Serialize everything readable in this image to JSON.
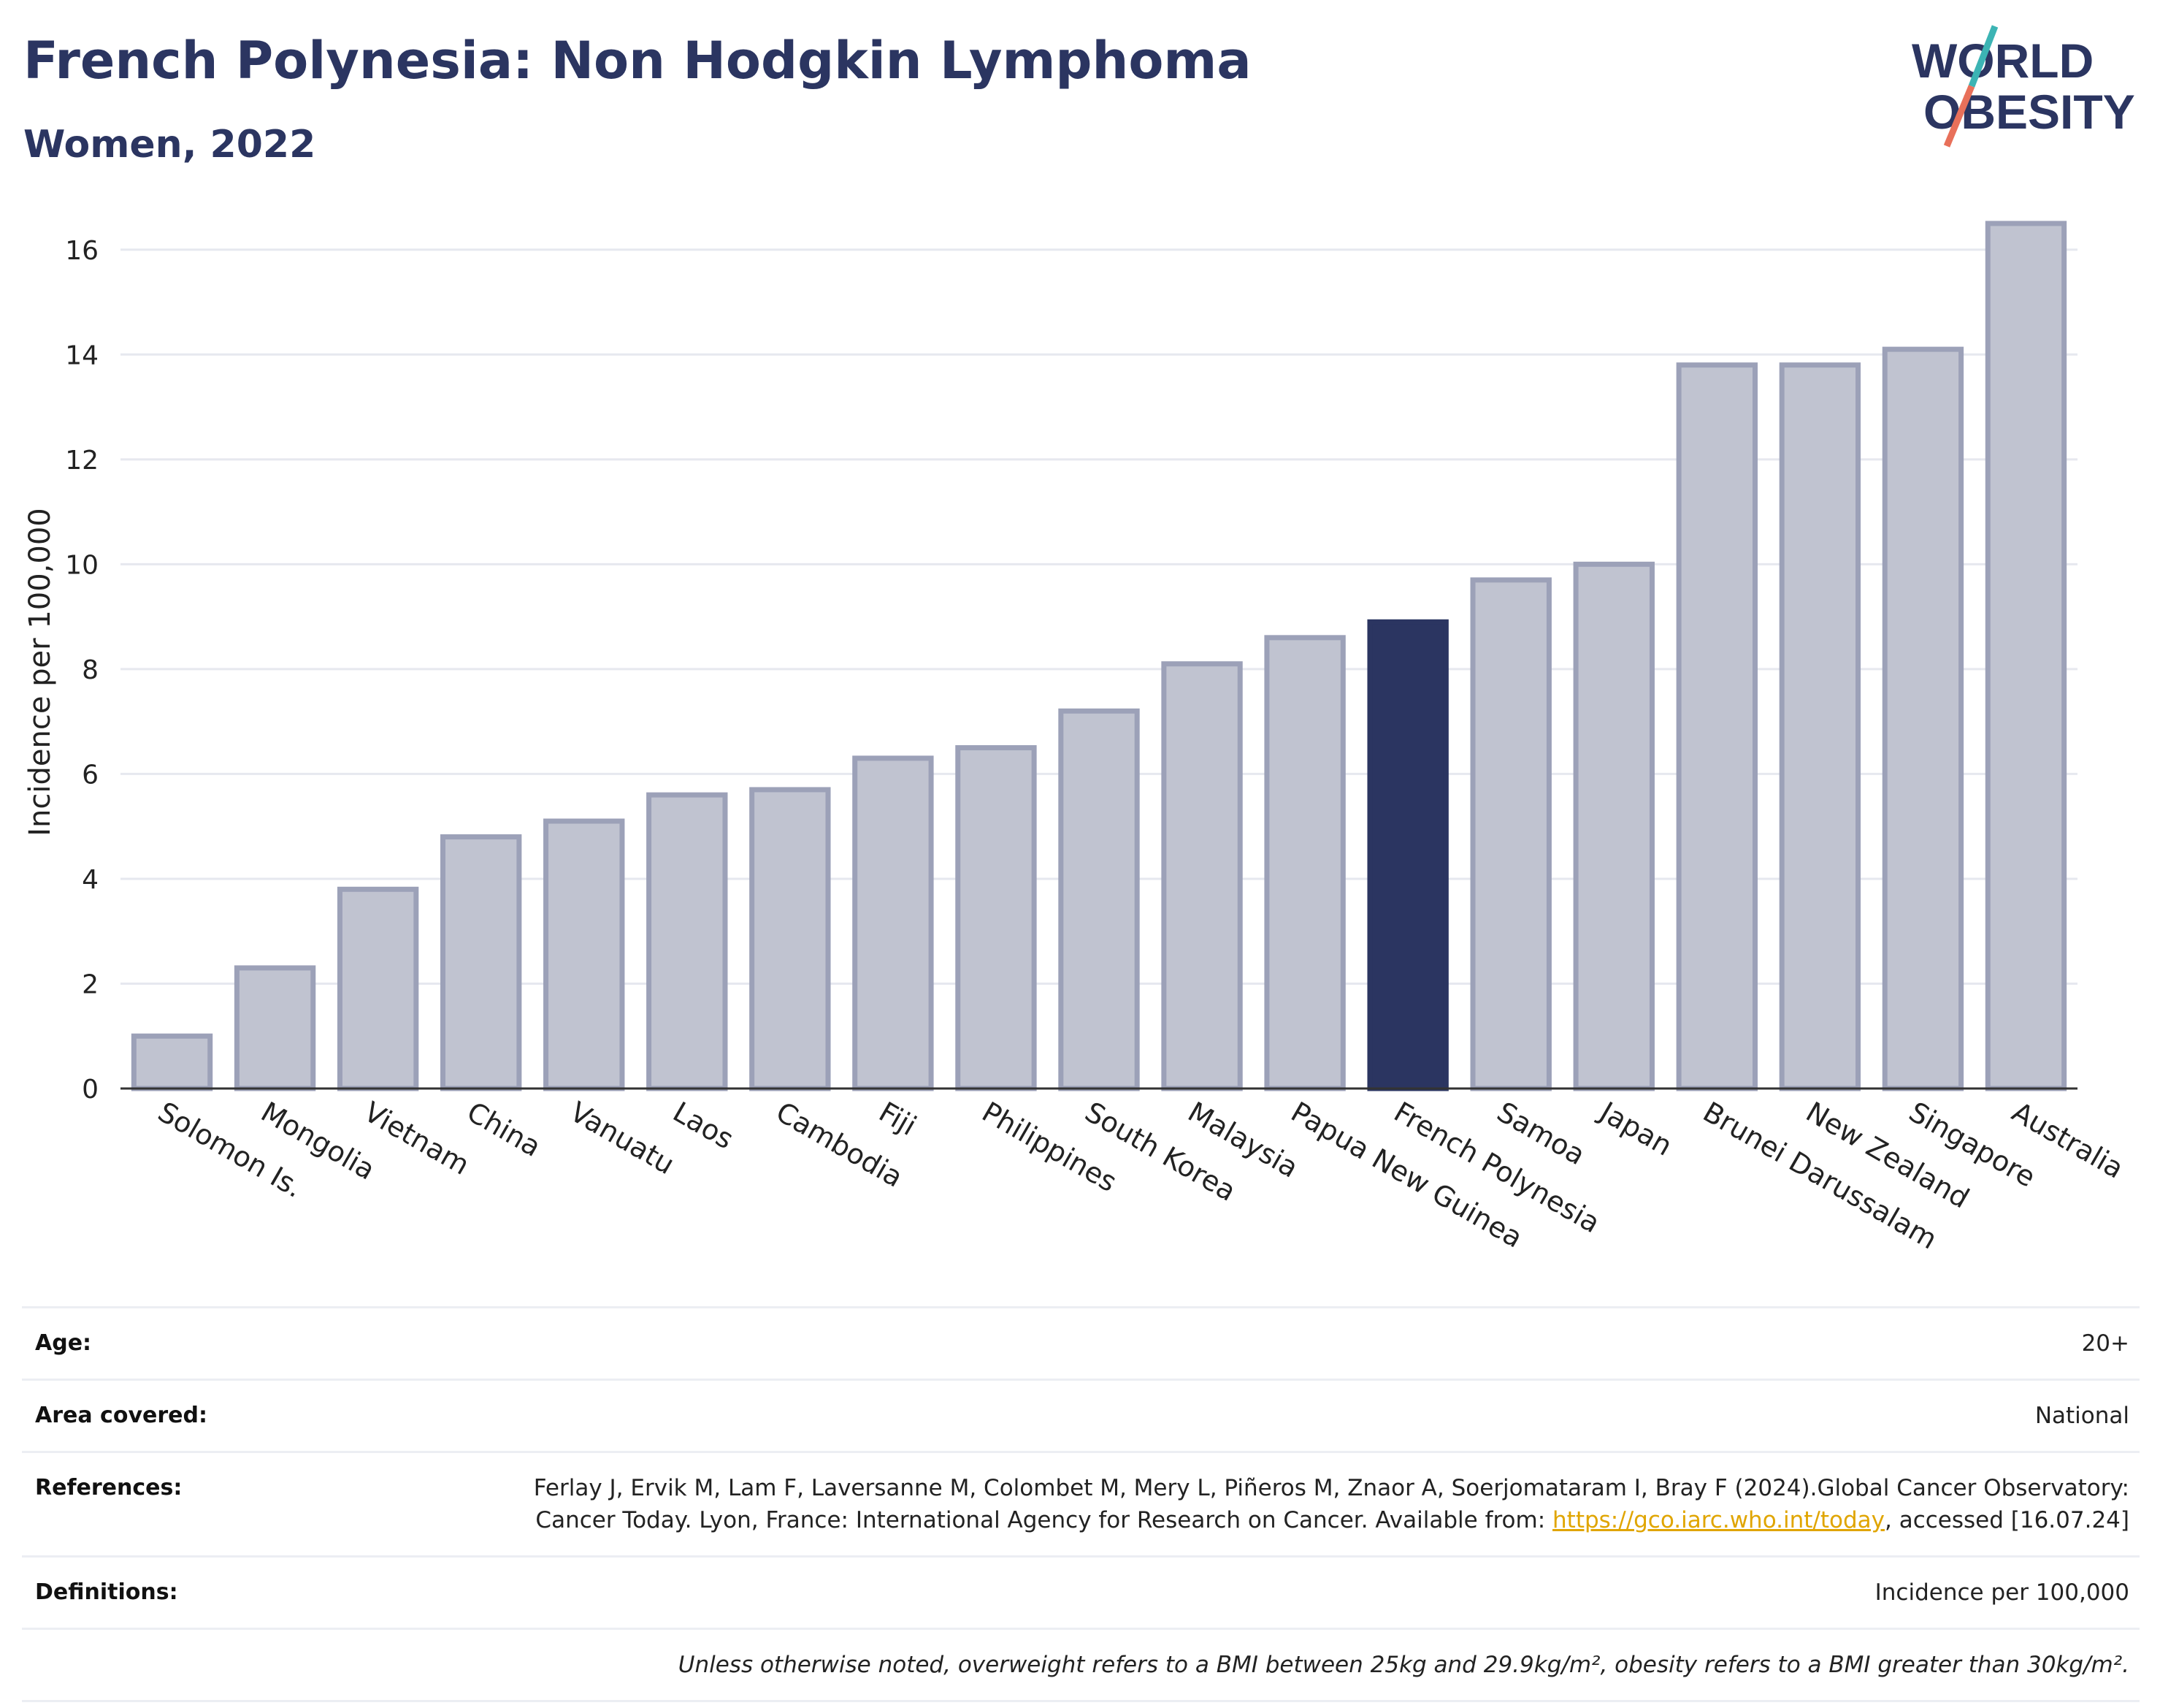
{
  "header": {
    "title": "French Polynesia: Non Hodgkin Lymphoma",
    "subtitle": "Women, 2022"
  },
  "logo": {
    "line1": "WORLD",
    "line2": "OBESITY",
    "brand_color": "#2b3561",
    "slash_colors": [
      "#3cb4b4",
      "#e8705a"
    ]
  },
  "chart_data": {
    "type": "bar",
    "ylabel": "Incidence per 100,000",
    "ylim": [
      0,
      17
    ],
    "yticks": [
      0,
      2,
      4,
      6,
      8,
      10,
      12,
      14,
      16
    ],
    "grid": true,
    "categories": [
      "Solomon Is.",
      "Mongolia",
      "Vietnam",
      "China",
      "Vanuatu",
      "Laos",
      "Cambodia",
      "Fiji",
      "Philippines",
      "South Korea",
      "Malaysia",
      "Papua New Guinea",
      "French Polynesia",
      "Samoa",
      "Japan",
      "Brunei Darussalam",
      "New Zealand",
      "Singapore",
      "Australia"
    ],
    "values": [
      1.0,
      2.3,
      3.8,
      4.8,
      5.1,
      5.6,
      5.7,
      6.3,
      6.5,
      7.2,
      8.1,
      8.6,
      8.9,
      9.7,
      10.0,
      13.8,
      13.8,
      14.1,
      16.5
    ],
    "highlight": "French Polynesia",
    "colors": {
      "bar": "#c0c3d0",
      "bar_border": "#9ca1b8",
      "highlight": "#2b3561"
    }
  },
  "meta": {
    "age_label": "Age:",
    "age_value": "20+",
    "area_label": "Area covered:",
    "area_value": "National",
    "references_label": "References:",
    "references_text_1": "Ferlay J, Ervik M, Lam F, Laversanne M, Colombet M, Mery L, Piñeros M, Znaor A, Soerjomataram I, Bray F (2024).Global Cancer Observatory: Cancer Today. Lyon, France: International Agency for Research on Cancer. Available from: ",
    "references_link": "https://gco.iarc.who.int/today",
    "references_text_2": ", accessed [16.07.24]",
    "definitions_label": "Definitions:",
    "definitions_value": "Incidence per 100,000",
    "note": "Unless otherwise noted, overweight refers to a BMI between 25kg and 29.9kg/m², obesity refers to a BMI greater than 30kg/m²."
  }
}
